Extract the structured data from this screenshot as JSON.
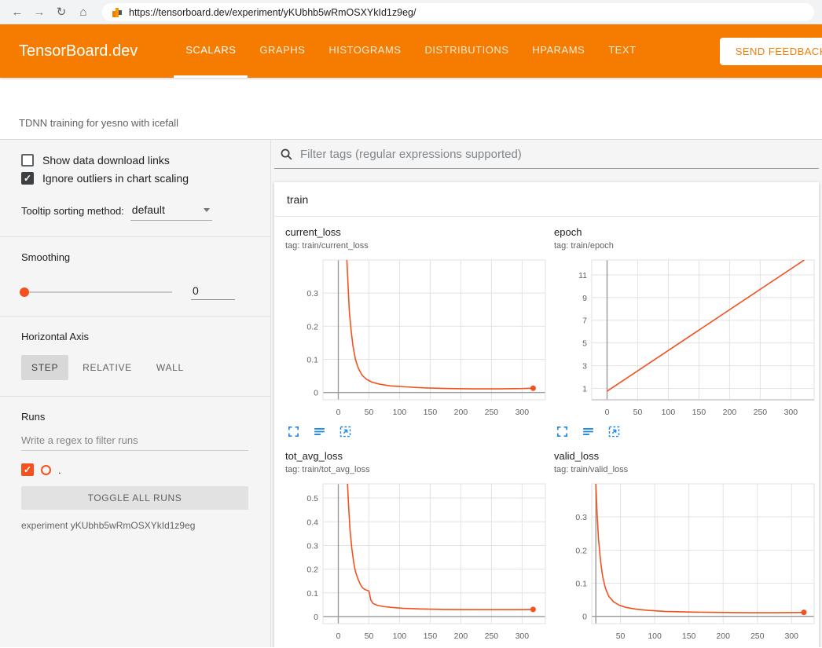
{
  "browser": {
    "url": "https://tensorboard.dev/experiment/yKUbhb5wRmOSXYkId1z9eg/"
  },
  "header": {
    "title": "TensorBoard.dev",
    "tabs": [
      {
        "label": "SCALARS",
        "active": true
      },
      {
        "label": "GRAPHS",
        "active": false
      },
      {
        "label": "HISTOGRAMS",
        "active": false
      },
      {
        "label": "DISTRIBUTIONS",
        "active": false
      },
      {
        "label": "HPARAMS",
        "active": false
      },
      {
        "label": "TEXT",
        "active": false
      }
    ],
    "feedback_label": "SEND FEEDBACK"
  },
  "experiment": {
    "name": "TDNN training for yesno with icefall"
  },
  "sidebar": {
    "show_download_label": "Show data download links",
    "ignore_outliers_label": "Ignore outliers in chart scaling",
    "tooltip_sorting_label": "Tooltip sorting method:",
    "tooltip_sorting_value": "default",
    "smoothing_label": "Smoothing",
    "smoothing_value": "0",
    "horizontal_axis_label": "Horizontal Axis",
    "axis_buttons": [
      "STEP",
      "RELATIVE",
      "WALL"
    ],
    "runs_label": "Runs",
    "runs_filter_placeholder": "Write a regex to filter runs",
    "run_name": ".",
    "run_color": "#f4511e",
    "toggle_all_label": "TOGGLE ALL RUNS",
    "experiment_id_label": "experiment yKUbhb5wRmOSXYkId1z9eg"
  },
  "main": {
    "filter_placeholder": "Filter tags (regular expressions supported)",
    "group_label": "train"
  },
  "colors": {
    "header_orange": "#f57c00",
    "line": "#f4511e",
    "icon_blue": "#1e88e5",
    "grid": "#e3e3e3",
    "axis": "#999999"
  },
  "chart_data": [
    {
      "type": "line",
      "title": "current_loss",
      "subtitle": "tag: train/current_loss",
      "xlim": [
        -25,
        338
      ],
      "ylim": [
        -0.022,
        0.4
      ],
      "xticks": [
        0,
        50,
        100,
        150,
        200,
        250,
        300
      ],
      "yticks": [
        0,
        0.1,
        0.2,
        0.3
      ],
      "x_axis": 0,
      "y_axis": 0,
      "points": [
        [
          14,
          0.4
        ],
        [
          16,
          0.32
        ],
        [
          18,
          0.245
        ],
        [
          21,
          0.185
        ],
        [
          24,
          0.14
        ],
        [
          28,
          0.1
        ],
        [
          33,
          0.072
        ],
        [
          39,
          0.052
        ],
        [
          46,
          0.04
        ],
        [
          55,
          0.031
        ],
        [
          68,
          0.025
        ],
        [
          85,
          0.02
        ],
        [
          110,
          0.017
        ],
        [
          140,
          0.014
        ],
        [
          180,
          0.012
        ],
        [
          220,
          0.011
        ],
        [
          260,
          0.011
        ],
        [
          300,
          0.012
        ],
        [
          318,
          0.013
        ]
      ],
      "endpoint": true
    },
    {
      "type": "line",
      "title": "epoch",
      "subtitle": "tag: train/epoch",
      "xlim": [
        -25,
        338
      ],
      "ylim": [
        0,
        12.3
      ],
      "xticks": [
        0,
        50,
        100,
        150,
        200,
        250,
        300
      ],
      "yticks": [
        1,
        3,
        5,
        7,
        9,
        11
      ],
      "x_axis": 0,
      "y_axis": 0,
      "points": [
        [
          0,
          0.75
        ],
        [
          322,
          12.3
        ]
      ],
      "endpoint": false
    },
    {
      "type": "line",
      "title": "tot_avg_loss",
      "subtitle": "tag: train/tot_avg_loss",
      "xlim": [
        -25,
        338
      ],
      "ylim": [
        -0.03,
        0.56
      ],
      "xticks": [
        0,
        50,
        100,
        150,
        200,
        250,
        300
      ],
      "yticks": [
        0,
        0.1,
        0.2,
        0.3,
        0.4,
        0.5
      ],
      "x_axis": 0,
      "y_axis": 0,
      "points": [
        [
          15,
          0.56
        ],
        [
          17,
          0.46
        ],
        [
          19,
          0.37
        ],
        [
          22,
          0.29
        ],
        [
          25,
          0.23
        ],
        [
          28,
          0.19
        ],
        [
          32,
          0.16
        ],
        [
          36,
          0.135
        ],
        [
          40,
          0.12
        ],
        [
          45,
          0.112
        ],
        [
          50,
          0.108
        ],
        [
          53,
          0.07
        ],
        [
          57,
          0.055
        ],
        [
          63,
          0.048
        ],
        [
          72,
          0.043
        ],
        [
          85,
          0.039
        ],
        [
          105,
          0.035
        ],
        [
          135,
          0.032
        ],
        [
          175,
          0.03
        ],
        [
          220,
          0.029
        ],
        [
          265,
          0.029
        ],
        [
          300,
          0.029
        ],
        [
          318,
          0.03
        ]
      ],
      "endpoint": true
    },
    {
      "type": "line",
      "title": "valid_loss",
      "subtitle": "tag: train/valid_loss",
      "xlim": [
        8,
        333
      ],
      "ylim": [
        -0.022,
        0.4
      ],
      "xticks": [
        50,
        100,
        150,
        200,
        250,
        300
      ],
      "yticks": [
        0,
        0.1,
        0.2,
        0.3
      ],
      "x_axis": 14,
      "y_axis": 0,
      "points": [
        [
          14,
          0.4
        ],
        [
          16,
          0.3
        ],
        [
          18,
          0.23
        ],
        [
          21,
          0.165
        ],
        [
          24,
          0.12
        ],
        [
          28,
          0.085
        ],
        [
          33,
          0.06
        ],
        [
          40,
          0.044
        ],
        [
          48,
          0.034
        ],
        [
          58,
          0.027
        ],
        [
          72,
          0.022
        ],
        [
          90,
          0.018
        ],
        [
          115,
          0.015
        ],
        [
          150,
          0.013
        ],
        [
          190,
          0.012
        ],
        [
          235,
          0.011
        ],
        [
          280,
          0.011
        ],
        [
          318,
          0.012
        ]
      ],
      "endpoint": true
    }
  ]
}
